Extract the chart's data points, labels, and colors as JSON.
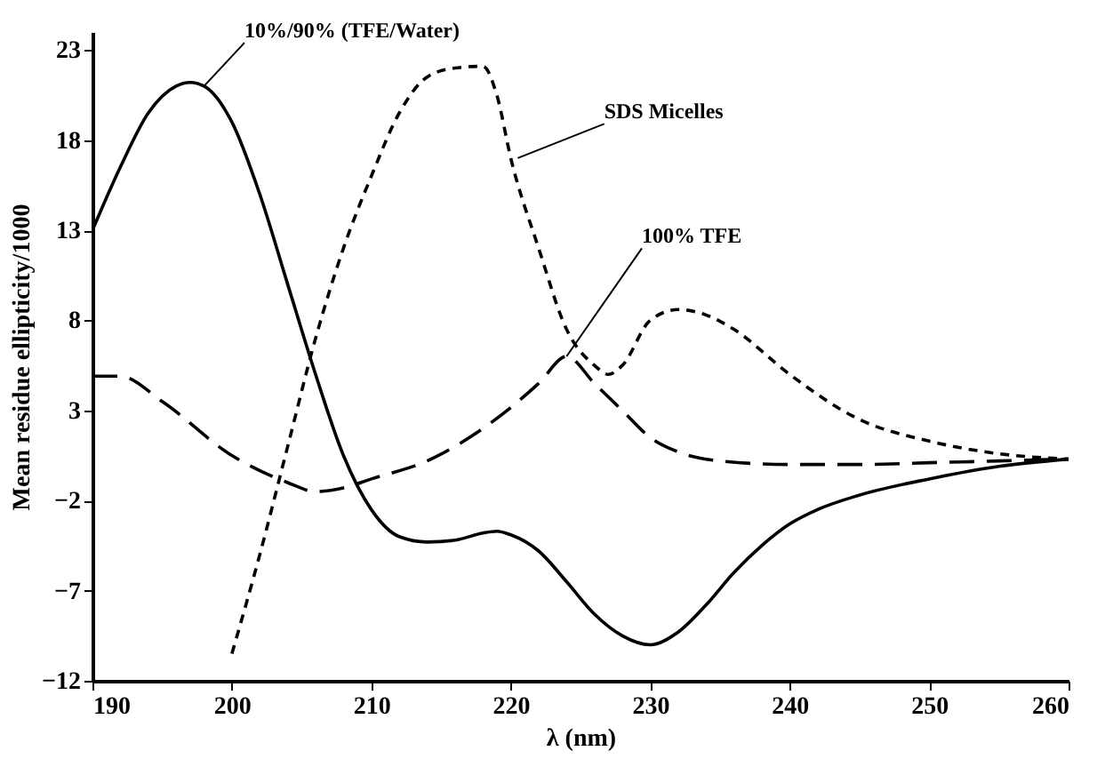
{
  "chart_data": {
    "type": "line",
    "xlabel": "λ (nm)",
    "ylabel": "Mean residue ellipticity/1000",
    "xlim": [
      190,
      260
    ],
    "xticks": [
      190,
      200,
      210,
      220,
      230,
      240,
      250,
      260
    ],
    "ylim": [
      -12,
      24
    ],
    "yticks": [
      -12,
      -7,
      -2,
      3,
      8,
      13,
      18,
      23
    ],
    "grid": false,
    "series": [
      {
        "color": "#000000",
        "line_style": "solid",
        "x": [
          190,
          192,
          194,
          196,
          197,
          198,
          200,
          202,
          204,
          206,
          208,
          210,
          212,
          214,
          216,
          218,
          219,
          220,
          222,
          224,
          226,
          228,
          230,
          232,
          234,
          236,
          238,
          240,
          242,
          245,
          250,
          255,
          260
        ],
        "values": [
          13,
          16.5,
          19.5,
          21,
          21.2,
          21,
          19,
          15,
          10,
          5,
          0.5,
          -2.5,
          -4,
          -4.3,
          -4.2,
          -3.8,
          -3.7,
          -3.9,
          -4.8,
          -6.5,
          -8.3,
          -9.5,
          -10,
          -9.3,
          -7.8,
          -6,
          -4.5,
          -3.3,
          -2.5,
          -1.7,
          -0.8,
          -0.1,
          0.3
        ]
      },
      {
        "color": "#000000",
        "line_style": "dotted",
        "x": [
          200,
          202,
          204,
          206,
          208,
          210,
          212,
          214,
          216,
          218,
          219,
          220,
          222,
          224,
          226,
          227,
          228,
          230,
          232,
          234,
          236,
          240,
          245,
          250,
          255,
          260
        ],
        "values": [
          -10.5,
          -5,
          1,
          7,
          12,
          16,
          19.5,
          21.5,
          22,
          22.1,
          20.5,
          17,
          12,
          7.5,
          5.5,
          5,
          5.5,
          8,
          8.6,
          8.3,
          7.5,
          5,
          2.5,
          1.3,
          0.6,
          0.3
        ]
      },
      {
        "color": "#000000",
        "line_style": "dashed",
        "x": [
          190,
          192,
          195,
          200,
          204,
          206,
          208,
          210,
          214,
          218,
          222,
          224,
          226,
          228,
          230,
          232,
          235,
          240,
          245,
          250,
          255,
          260
        ],
        "values": [
          4.9,
          4.9,
          3.5,
          0.5,
          -1,
          -1.5,
          -1.3,
          -0.8,
          0.2,
          2,
          4.5,
          6,
          4.5,
          3,
          1.5,
          0.7,
          0.2,
          0,
          0,
          0.1,
          0.2,
          0.3
        ]
      }
    ],
    "annotations": [
      {
        "text": "10%/90% (TFE/Water)",
        "x": 198,
        "y": 21
      },
      {
        "text": "SDS Micelles",
        "x": 220.5,
        "y": 17
      },
      {
        "text": "100% TFE",
        "x": 224,
        "y": 6
      }
    ]
  }
}
